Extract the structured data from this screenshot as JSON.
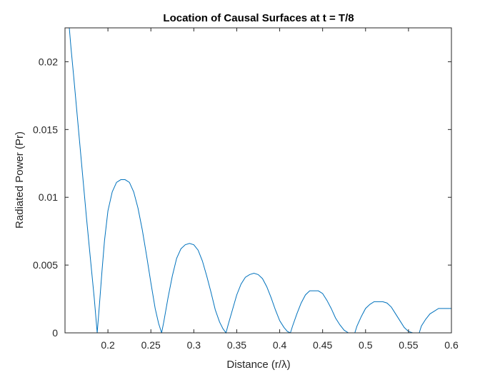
{
  "chart_data": {
    "type": "line",
    "title": "Location of Causal Surfaces at t = T/8",
    "xlabel": "Distance (r/λ)",
    "ylabel": "Radiated Power (Pr)",
    "xlim": [
      0.15,
      0.6
    ],
    "ylim": [
      0,
      0.0225
    ],
    "xticks": [
      0.2,
      0.25,
      0.3,
      0.35,
      0.4,
      0.45,
      0.5,
      0.55,
      0.6
    ],
    "xtick_labels": [
      "0.2",
      "0.25",
      "0.3",
      "0.35",
      "0.4",
      "0.45",
      "0.5",
      "0.55",
      "0.6"
    ],
    "yticks": [
      0,
      0.005,
      0.01,
      0.015,
      0.02
    ],
    "ytick_labels": [
      "0",
      "0.005",
      "0.01",
      "0.015",
      "0.02"
    ],
    "grid": false,
    "box": true,
    "line_color": "#0072BD",
    "series": [
      {
        "x": [
          0.155,
          0.157,
          0.16,
          0.165,
          0.17,
          0.175,
          0.18,
          0.184,
          0.1875,
          0.19,
          0.193,
          0.196,
          0.2,
          0.205,
          0.21,
          0.215,
          0.22,
          0.225,
          0.23,
          0.235,
          0.24,
          0.245,
          0.25,
          0.255,
          0.259,
          0.2625,
          0.265,
          0.27,
          0.275,
          0.28,
          0.285,
          0.29,
          0.295,
          0.3,
          0.305,
          0.31,
          0.315,
          0.32,
          0.325,
          0.33,
          0.334,
          0.3375,
          0.34,
          0.345,
          0.35,
          0.355,
          0.36,
          0.365,
          0.37,
          0.375,
          0.38,
          0.385,
          0.39,
          0.395,
          0.4,
          0.405,
          0.409,
          0.4125,
          0.415,
          0.42,
          0.425,
          0.43,
          0.435,
          0.44,
          0.445,
          0.45,
          0.455,
          0.46,
          0.465,
          0.47,
          0.475,
          0.48,
          0.484,
          0.4875,
          0.49,
          0.495,
          0.5,
          0.505,
          0.51,
          0.515,
          0.52,
          0.525,
          0.53,
          0.535,
          0.54,
          0.545,
          0.55,
          0.555,
          0.559,
          0.5625,
          0.565,
          0.57,
          0.575,
          0.58,
          0.585,
          0.59,
          0.595,
          0.6
        ],
        "y": [
          0.0225,
          0.021,
          0.019,
          0.0155,
          0.012,
          0.0085,
          0.0052,
          0.0026,
          0.0,
          0.002,
          0.0045,
          0.0068,
          0.009,
          0.0104,
          0.0111,
          0.0113,
          0.0113,
          0.0111,
          0.0104,
          0.0092,
          0.0076,
          0.0057,
          0.0037,
          0.0018,
          0.0007,
          0.0,
          0.0008,
          0.0026,
          0.0042,
          0.0055,
          0.0062,
          0.0065,
          0.0066,
          0.0065,
          0.0061,
          0.0053,
          0.0042,
          0.003,
          0.0017,
          0.0008,
          0.0003,
          0.0,
          0.0006,
          0.0017,
          0.0028,
          0.0036,
          0.0041,
          0.0043,
          0.0044,
          0.0043,
          0.004,
          0.0034,
          0.0026,
          0.0017,
          0.0009,
          0.0004,
          0.0001,
          0.0,
          0.0005,
          0.0014,
          0.0022,
          0.0028,
          0.0031,
          0.0031,
          0.0031,
          0.0029,
          0.0024,
          0.0018,
          0.0011,
          0.0006,
          0.0002,
          0.0,
          0.0,
          0.0,
          0.0005,
          0.0012,
          0.0018,
          0.0021,
          0.0023,
          0.0023,
          0.0023,
          0.0022,
          0.0019,
          0.0014,
          0.0009,
          0.0004,
          0.0001,
          0.0,
          0.0,
          0.0,
          0.0005,
          0.001,
          0.0014,
          0.0016,
          0.0018,
          0.0018,
          0.0018,
          0.0018
        ]
      }
    ]
  }
}
